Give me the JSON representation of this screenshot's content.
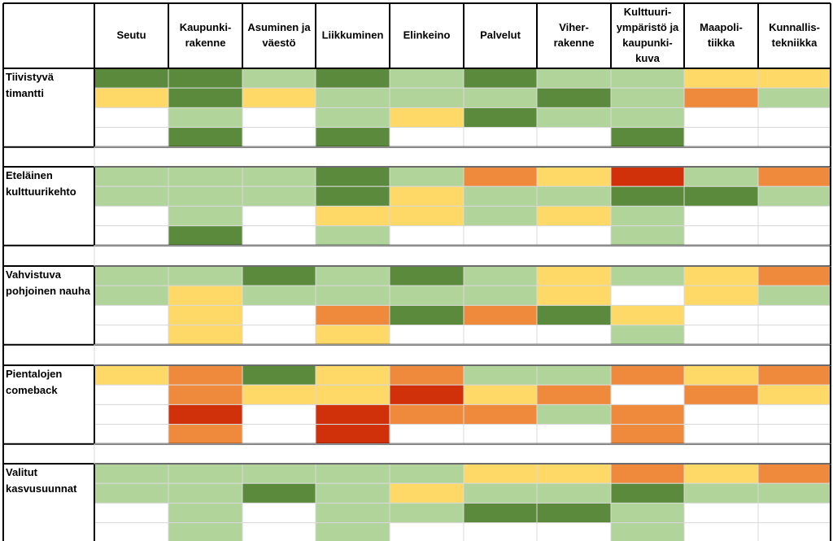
{
  "chart_data": {
    "type": "heatmap",
    "columns": [
      [
        "Seutu"
      ],
      [
        "Kaupunki-",
        "rakenne"
      ],
      [
        "Asuminen ja",
        "väestö"
      ],
      [
        "Liikkuminen"
      ],
      [
        "Elinkeino"
      ],
      [
        "Palvelut"
      ],
      [
        "Viher-",
        "rakenne"
      ],
      [
        "Kulttuuri-",
        "ympäristö ja",
        "kaupunki-",
        "kuva"
      ],
      [
        "Maapoli-",
        "tiikka"
      ],
      [
        "Kunnallis-",
        "tekniikka"
      ]
    ],
    "palette": {
      "DG": "#5c8a3c",
      "LG": "#b1d49b",
      "Y": "#ffd967",
      "O": "#ef8a3d",
      "R": "#d0310b",
      "W": "#ffffff"
    },
    "groups": [
      {
        "label": [
          "Tiivistyvä",
          "timantti"
        ],
        "rows": [
          [
            "DG",
            "DG",
            "LG",
            "DG",
            "LG",
            "DG",
            "LG",
            "LG",
            "Y",
            "Y"
          ],
          [
            "Y",
            "DG",
            "Y",
            "LG",
            "LG",
            "LG",
            "DG",
            "LG",
            "O",
            "LG"
          ],
          [
            "W",
            "LG",
            "W",
            "LG",
            "Y",
            "DG",
            "LG",
            "LG",
            "W",
            "W"
          ],
          [
            "W",
            "DG",
            "W",
            "DG",
            "W",
            "W",
            "W",
            "DG",
            "W",
            "W"
          ]
        ]
      },
      {
        "label": [
          "Eteläinen",
          "kulttuurikehto"
        ],
        "rows": [
          [
            "LG",
            "LG",
            "LG",
            "DG",
            "LG",
            "O",
            "Y",
            "R",
            "LG",
            "O"
          ],
          [
            "LG",
            "LG",
            "LG",
            "DG",
            "Y",
            "LG",
            "LG",
            "DG",
            "DG",
            "LG"
          ],
          [
            "W",
            "LG",
            "W",
            "Y",
            "Y",
            "LG",
            "Y",
            "LG",
            "W",
            "W"
          ],
          [
            "W",
            "DG",
            "W",
            "LG",
            "W",
            "W",
            "W",
            "LG",
            "W",
            "W"
          ]
        ]
      },
      {
        "label": [
          "Vahvistuva",
          "pohjoinen nauha"
        ],
        "rows": [
          [
            "LG",
            "LG",
            "DG",
            "LG",
            "DG",
            "LG",
            "Y",
            "LG",
            "Y",
            "O"
          ],
          [
            "LG",
            "Y",
            "LG",
            "LG",
            "LG",
            "LG",
            "Y",
            "W",
            "Y",
            "LG"
          ],
          [
            "W",
            "Y",
            "W",
            "O",
            "DG",
            "O",
            "DG",
            "Y",
            "W",
            "W"
          ],
          [
            "W",
            "Y",
            "W",
            "Y",
            "W",
            "W",
            "W",
            "LG",
            "W",
            "W"
          ]
        ]
      },
      {
        "label": [
          "Pientalojen",
          "comeback"
        ],
        "rows": [
          [
            "Y",
            "O",
            "DG",
            "Y",
            "O",
            "LG",
            "LG",
            "O",
            "Y",
            "O"
          ],
          [
            "W",
            "O",
            "Y",
            "Y",
            "R",
            "Y",
            "O",
            "W",
            "O",
            "Y"
          ],
          [
            "W",
            "R",
            "W",
            "R",
            "O",
            "O",
            "LG",
            "O",
            "W",
            "W"
          ],
          [
            "W",
            "O",
            "W",
            "R",
            "W",
            "W",
            "W",
            "O",
            "W",
            "W"
          ]
        ]
      },
      {
        "label": [
          "Valitut",
          "kasvusuunnat"
        ],
        "rows": [
          [
            "LG",
            "LG",
            "LG",
            "LG",
            "LG",
            "Y",
            "Y",
            "O",
            "Y",
            "O"
          ],
          [
            "LG",
            "LG",
            "DG",
            "LG",
            "Y",
            "LG",
            "LG",
            "DG",
            "LG",
            "LG"
          ],
          [
            "W",
            "LG",
            "W",
            "LG",
            "LG",
            "DG",
            "DG",
            "LG",
            "W",
            "W"
          ],
          [
            "W",
            "LG",
            "W",
            "LG",
            "W",
            "W",
            "W",
            "LG",
            "W",
            "W"
          ]
        ]
      }
    ]
  }
}
